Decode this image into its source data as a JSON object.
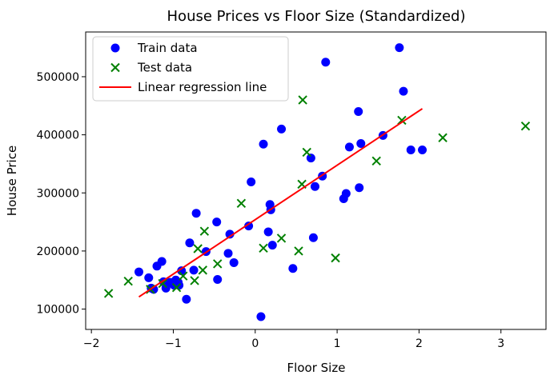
{
  "chart_data": {
    "type": "scatter",
    "title": "House Prices vs Floor Size (Standardized)",
    "xlabel": "Floor Size",
    "ylabel": "House Price",
    "xlim": [
      -2.07,
      3.55
    ],
    "ylim": [
      65000,
      577000
    ],
    "xticks": [
      -2,
      -1,
      0,
      1,
      2,
      3
    ],
    "xtick_labels": [
      "−2",
      "−1",
      "0",
      "1",
      "2",
      "3"
    ],
    "yticks": [
      100000,
      200000,
      300000,
      400000,
      500000
    ],
    "ytick_labels": [
      "100000",
      "200000",
      "300000",
      "400000",
      "500000"
    ],
    "grid": false,
    "legend_position": "top-left",
    "series": [
      {
        "name": "Train data",
        "kind": "scatter",
        "marker": "circle",
        "color": "#0000ff",
        "points": [
          [
            -1.42,
            164000
          ],
          [
            -1.3,
            154000
          ],
          [
            -1.27,
            136000
          ],
          [
            -1.24,
            134000
          ],
          [
            -1.2,
            174000
          ],
          [
            -1.14,
            182000
          ],
          [
            -1.12,
            147000
          ],
          [
            -1.09,
            136000
          ],
          [
            -1.04,
            146000
          ],
          [
            -0.99,
            141000
          ],
          [
            -0.97,
            150000
          ],
          [
            -0.94,
            146000
          ],
          [
            -0.93,
            141000
          ],
          [
            -0.9,
            166000
          ],
          [
            -0.84,
            117000
          ],
          [
            -0.8,
            214000
          ],
          [
            -0.75,
            167000
          ],
          [
            -0.72,
            265000
          ],
          [
            -0.6,
            199000
          ],
          [
            -0.47,
            250000
          ],
          [
            -0.46,
            151000
          ],
          [
            -0.33,
            196000
          ],
          [
            -0.31,
            229000
          ],
          [
            -0.26,
            180000
          ],
          [
            -0.08,
            243000
          ],
          [
            -0.05,
            319000
          ],
          [
            0.07,
            87000
          ],
          [
            0.1,
            384000
          ],
          [
            0.16,
            233000
          ],
          [
            0.18,
            280000
          ],
          [
            0.19,
            271000
          ],
          [
            0.21,
            210000
          ],
          [
            0.32,
            410000
          ],
          [
            0.46,
            170000
          ],
          [
            0.68,
            360000
          ],
          [
            0.71,
            223000
          ],
          [
            0.73,
            311000
          ],
          [
            0.82,
            329000
          ],
          [
            0.86,
            525000
          ],
          [
            1.08,
            290000
          ],
          [
            1.11,
            299000
          ],
          [
            1.15,
            379000
          ],
          [
            1.26,
            440000
          ],
          [
            1.27,
            309000
          ],
          [
            1.29,
            385000
          ],
          [
            1.56,
            399000
          ],
          [
            1.76,
            550000
          ],
          [
            1.81,
            475000
          ],
          [
            1.9,
            374000
          ],
          [
            2.04,
            374000
          ]
        ]
      },
      {
        "name": "Test data",
        "kind": "scatter",
        "marker": "x",
        "color": "#008000",
        "points": [
          [
            -1.79,
            127000
          ],
          [
            -1.55,
            148000
          ],
          [
            -1.28,
            134000
          ],
          [
            -1.13,
            144000
          ],
          [
            -0.96,
            137000
          ],
          [
            -0.88,
            157000
          ],
          [
            -0.74,
            149000
          ],
          [
            -0.7,
            204000
          ],
          [
            -0.64,
            167000
          ],
          [
            -0.62,
            234000
          ],
          [
            -0.46,
            178000
          ],
          [
            -0.17,
            282000
          ],
          [
            0.1,
            205000
          ],
          [
            0.32,
            222000
          ],
          [
            0.53,
            200000
          ],
          [
            0.57,
            315000
          ],
          [
            0.58,
            460000
          ],
          [
            0.63,
            370000
          ],
          [
            0.98,
            188000
          ],
          [
            1.48,
            355000
          ],
          [
            1.79,
            425000
          ],
          [
            2.29,
            395000
          ],
          [
            3.3,
            415000
          ]
        ]
      },
      {
        "name": "Linear regression line",
        "kind": "line",
        "color": "#ff0000",
        "points": [
          [
            -1.42,
            121000
          ],
          [
            2.04,
            445000
          ]
        ]
      }
    ]
  }
}
